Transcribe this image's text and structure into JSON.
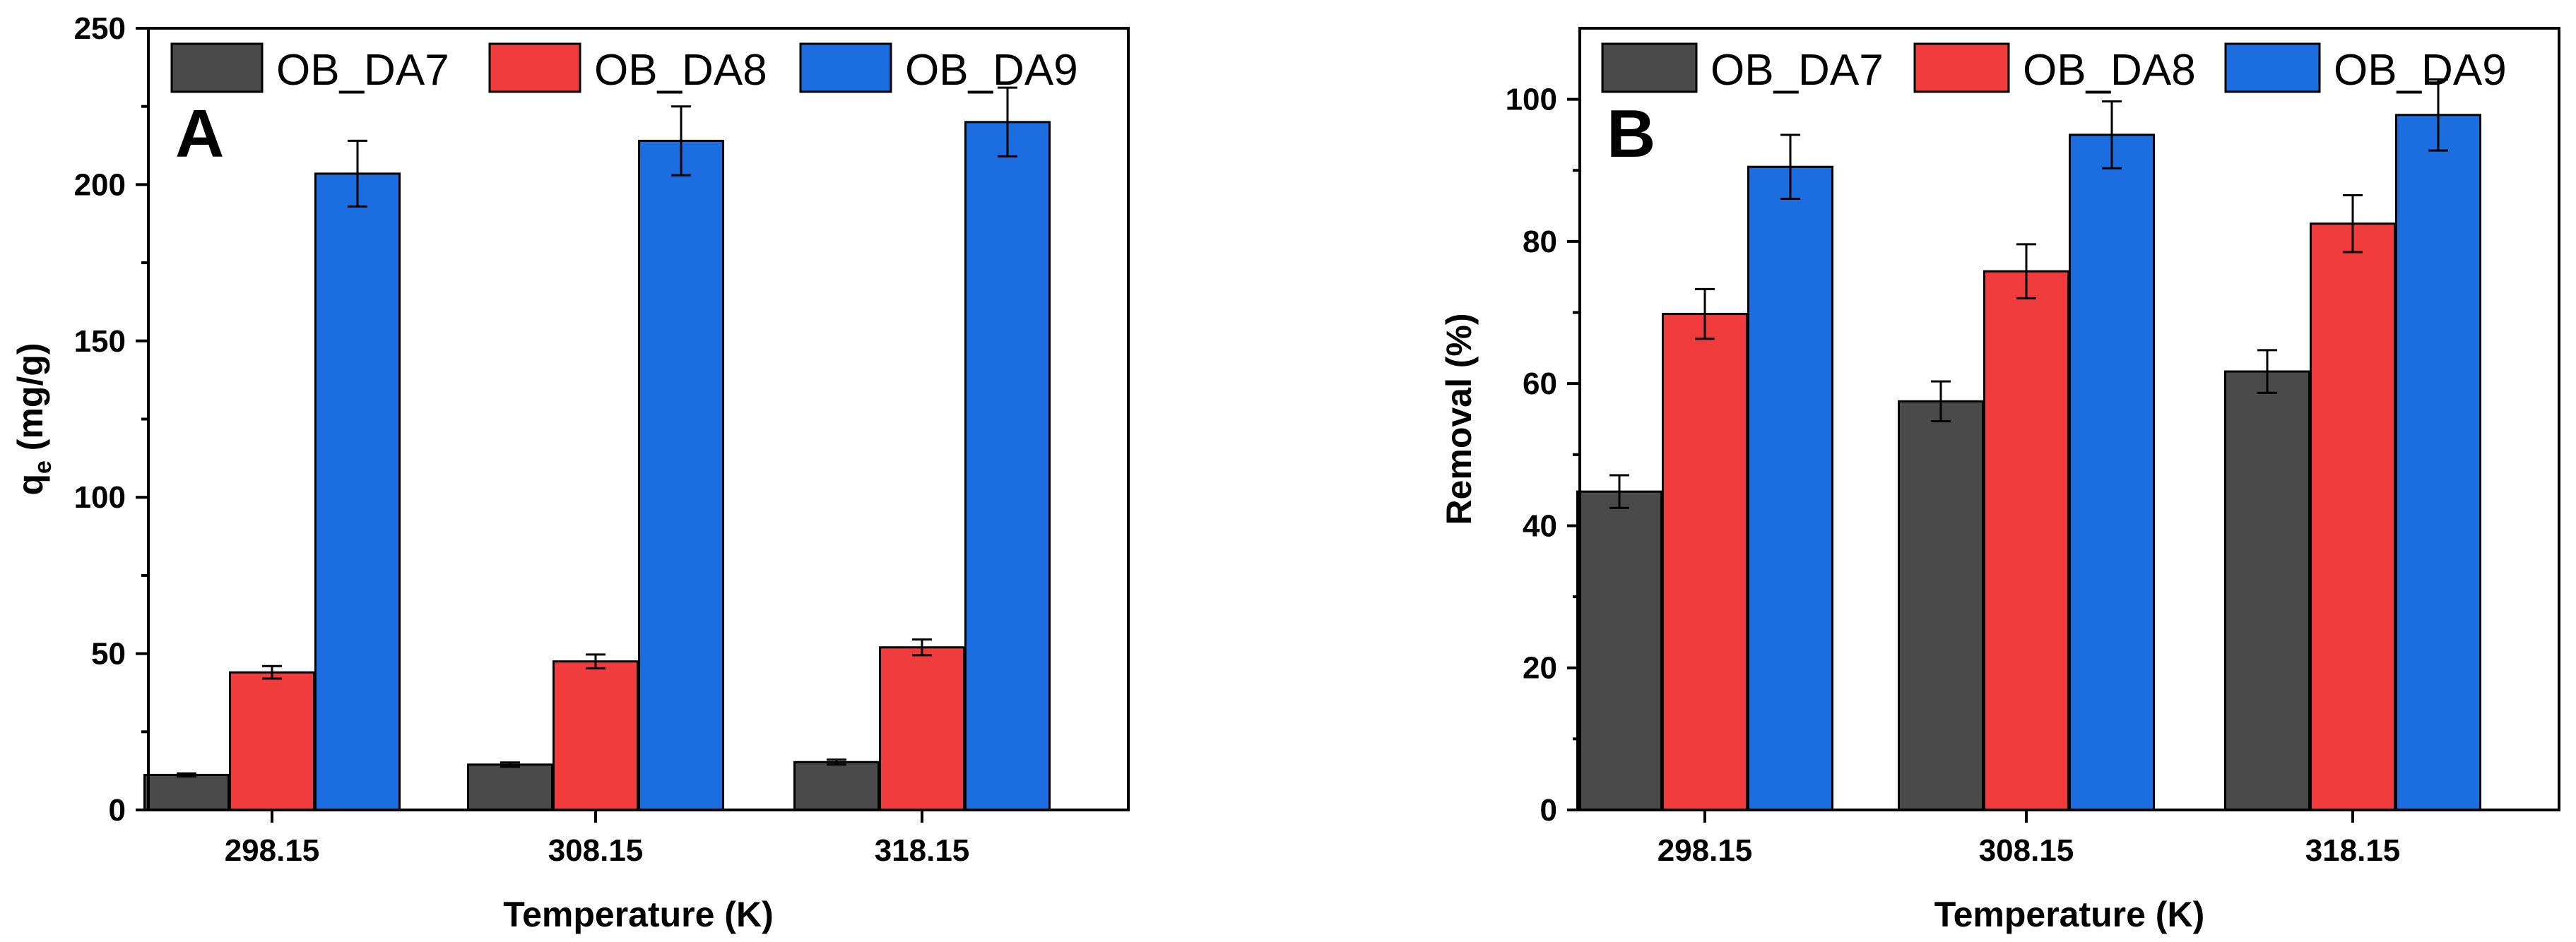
{
  "colors": {
    "OB_DA7": "#4a4a4a",
    "OB_DA8": "#f03c3c",
    "OB_DA9": "#1c6ee0"
  },
  "chart_data": [
    {
      "type": "bar",
      "panel": "A",
      "title": "",
      "xlabel": "Temperature (K)",
      "ylabel_main": "q",
      "ylabel_sub": "e",
      "ylabel_rest": " (mg/g)",
      "ylim": [
        0,
        250
      ],
      "yticks": [
        0,
        50,
        100,
        150,
        200,
        250
      ],
      "yticks_labels": [
        "0",
        "50",
        "100",
        "150",
        "200",
        "250"
      ],
      "categories": [
        "298.15",
        "308.15",
        "318.15"
      ],
      "legend_position": "top",
      "series": [
        {
          "name": "OB_DA7",
          "values": [
            11.2,
            14.5,
            15.3
          ],
          "errors": [
            0.5,
            0.7,
            0.8
          ]
        },
        {
          "name": "OB_DA8",
          "values": [
            44,
            47.5,
            52
          ],
          "errors": [
            2,
            2.2,
            2.5
          ]
        },
        {
          "name": "OB_DA9",
          "values": [
            203.5,
            214,
            220
          ],
          "errors": [
            10.5,
            11,
            11
          ]
        }
      ]
    },
    {
      "type": "bar",
      "panel": "B",
      "title": "",
      "xlabel": "Temperature (K)",
      "ylabel": "Removal (%)",
      "ylim": [
        0,
        110
      ],
      "yticks": [
        0,
        20,
        40,
        60,
        80,
        100
      ],
      "yticks_labels": [
        "0",
        "20",
        "40",
        "60",
        "80",
        "100"
      ],
      "categories": [
        "298.15",
        "308.15",
        "318.15"
      ],
      "legend_position": "top",
      "series": [
        {
          "name": "OB_DA7",
          "values": [
            44.8,
            57.5,
            61.7
          ],
          "errors": [
            2.3,
            2.8,
            3
          ]
        },
        {
          "name": "OB_DA8",
          "values": [
            69.8,
            75.8,
            82.5
          ],
          "errors": [
            3.5,
            3.8,
            4
          ]
        },
        {
          "name": "OB_DA9",
          "values": [
            90.5,
            95,
            97.8
          ],
          "errors": [
            4.5,
            4.7,
            5
          ]
        }
      ]
    }
  ]
}
